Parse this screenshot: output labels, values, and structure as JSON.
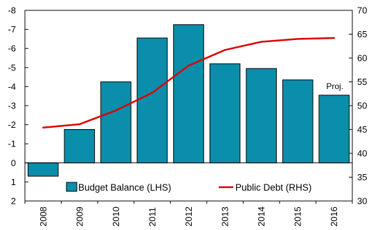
{
  "chart_data": {
    "type": "bar+line",
    "categories": [
      "2008",
      "2009",
      "2010",
      "2011",
      "2012",
      "2013",
      "2014",
      "2015",
      "2016"
    ],
    "series": [
      {
        "name": "Budget Balance (LHS)",
        "type": "bar",
        "axis": "left",
        "color": "#0a8eab",
        "values": [
          0.7,
          -1.75,
          -4.25,
          -6.55,
          -7.25,
          -5.2,
          -4.95,
          -4.35,
          -3.55
        ]
      },
      {
        "name": "Public Debt (RHS)",
        "type": "line",
        "axis": "right",
        "color": "#dd0000",
        "values": [
          45.4,
          46.1,
          49.0,
          52.7,
          58.4,
          61.7,
          63.4,
          64.0,
          64.2
        ]
      }
    ],
    "left_axis": {
      "min": -8,
      "max": 2,
      "step": 1,
      "inverted": true,
      "tick_labels": [
        "-8",
        "-7",
        "-6",
        "-5",
        "-4",
        "-3",
        "-2",
        "-1",
        "0",
        "1",
        "2"
      ]
    },
    "right_axis": {
      "min": 30,
      "max": 70,
      "step": 5,
      "tick_labels": [
        "70",
        "65",
        "60",
        "55",
        "50",
        "45",
        "40",
        "35",
        "30"
      ]
    },
    "annotations": [
      {
        "text": "Proj.",
        "category": "2016"
      }
    ],
    "legend": {
      "placement": "bottom-inside",
      "entries": [
        "Budget Balance (LHS)",
        "Public Debt (RHS)"
      ]
    },
    "grid": false
  }
}
